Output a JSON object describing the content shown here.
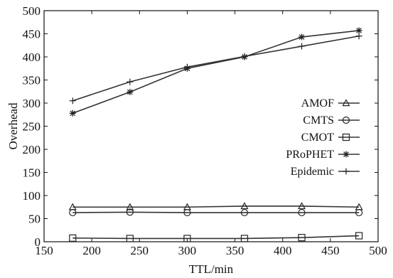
{
  "chart_data": {
    "type": "line",
    "xlabel": "TTL/min",
    "ylabel": "Overhead",
    "xlim": [
      150,
      500
    ],
    "ylim": [
      0,
      500
    ],
    "xticks": [
      150,
      200,
      250,
      300,
      350,
      400,
      450,
      500
    ],
    "yticks": [
      0,
      50,
      100,
      150,
      200,
      250,
      300,
      350,
      400,
      450,
      500
    ],
    "grid": false,
    "legend_position": "right",
    "series": [
      {
        "name": "AMOF",
        "marker": "triangle",
        "x": [
          180,
          240,
          300,
          360,
          420,
          480
        ],
        "values": [
          75,
          75,
          75,
          77,
          77,
          75
        ]
      },
      {
        "name": "CMTS",
        "marker": "circle",
        "x": [
          180,
          240,
          300,
          360,
          420,
          480
        ],
        "values": [
          63,
          64,
          63,
          63,
          63,
          63
        ]
      },
      {
        "name": "CMOT",
        "marker": "square",
        "x": [
          180,
          240,
          300,
          360,
          420,
          480
        ],
        "values": [
          8,
          7,
          7,
          7,
          9,
          13
        ]
      },
      {
        "name": "PRoPHET",
        "marker": "asterisk",
        "x": [
          180,
          240,
          300,
          360,
          420,
          480
        ],
        "values": [
          278,
          324,
          375,
          400,
          443,
          457
        ]
      },
      {
        "name": "Epidemic",
        "marker": "plus",
        "x": [
          180,
          240,
          300,
          360,
          420,
          480
        ],
        "values": [
          305,
          346,
          378,
          401,
          423,
          445
        ]
      }
    ]
  }
}
